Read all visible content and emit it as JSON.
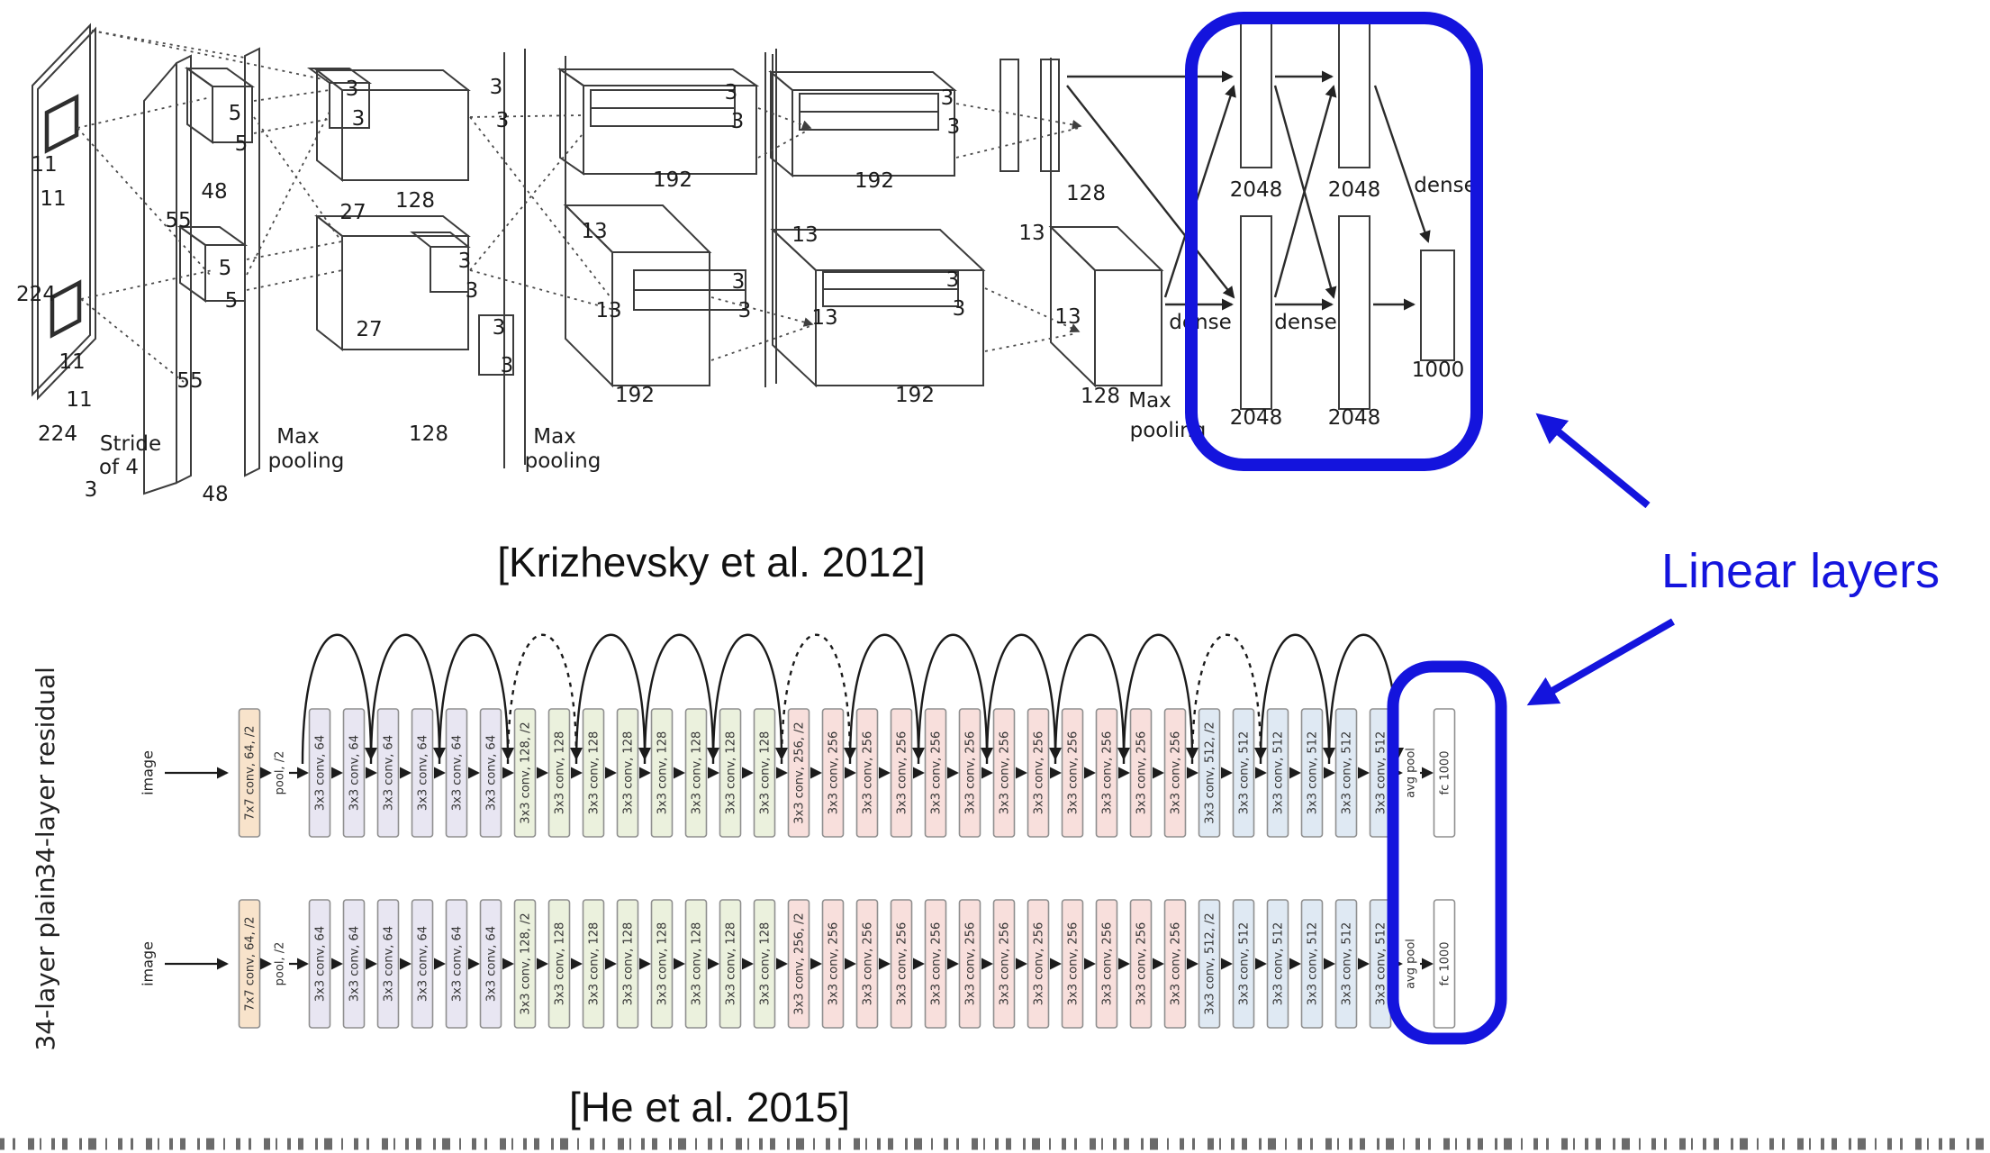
{
  "slide": {
    "background": "#ffffff",
    "accent_blue": "#1414dd",
    "annotation": {
      "label": "Linear layers"
    },
    "alexnet": {
      "caption": "[Krizhevsky et al. 2012]",
      "values": {
        "d224": "224",
        "d11": "11",
        "d5": "5",
        "d55": "55",
        "d48": "48",
        "d27": "27",
        "d3": "3",
        "d13": "13",
        "d128": "128",
        "d192": "192",
        "d1000": "1000",
        "d2048": "2048",
        "dense": "dense",
        "max": "Max",
        "pooling": "pooling",
        "stride1": "Stride",
        "stride2": "of 4"
      }
    },
    "resnet": {
      "caption": "[He et al. 2015]",
      "rows": [
        {
          "label": "34-layer residual",
          "input": "image",
          "arcs": true
        },
        {
          "label": "34-layer plain",
          "input": "image",
          "arcs": false
        }
      ],
      "dashed_arcs": [
        4,
        8,
        14
      ],
      "colors": {
        "stem": "#f8e3cb",
        "g64": "#e8e6f2",
        "g128": "#ebf1dd",
        "g256": "#f8dfdc",
        "g512": "#dfe9f3",
        "fc": "#ffffff"
      },
      "sequence": [
        {
          "label": "7x7 conv, 64, /2",
          "kind": "box",
          "group": "stem"
        },
        {
          "label": "pool, /2",
          "kind": "text"
        },
        {
          "label": "3x3 conv, 64",
          "kind": "box",
          "group": "g64"
        },
        {
          "label": "3x3 conv, 64",
          "kind": "box",
          "group": "g64"
        },
        {
          "label": "3x3 conv, 64",
          "kind": "box",
          "group": "g64"
        },
        {
          "label": "3x3 conv, 64",
          "kind": "box",
          "group": "g64"
        },
        {
          "label": "3x3 conv, 64",
          "kind": "box",
          "group": "g64"
        },
        {
          "label": "3x3 conv, 64",
          "kind": "box",
          "group": "g64"
        },
        {
          "label": "3x3 conv, 128, /2",
          "kind": "box",
          "group": "g128"
        },
        {
          "label": "3x3 conv, 128",
          "kind": "box",
          "group": "g128"
        },
        {
          "label": "3x3 conv, 128",
          "kind": "box",
          "group": "g128"
        },
        {
          "label": "3x3 conv, 128",
          "kind": "box",
          "group": "g128"
        },
        {
          "label": "3x3 conv, 128",
          "kind": "box",
          "group": "g128"
        },
        {
          "label": "3x3 conv, 128",
          "kind": "box",
          "group": "g128"
        },
        {
          "label": "3x3 conv, 128",
          "kind": "box",
          "group": "g128"
        },
        {
          "label": "3x3 conv, 128",
          "kind": "box",
          "group": "g128"
        },
        {
          "label": "3x3 conv, 256, /2",
          "kind": "box",
          "group": "g256"
        },
        {
          "label": "3x3 conv, 256",
          "kind": "box",
          "group": "g256"
        },
        {
          "label": "3x3 conv, 256",
          "kind": "box",
          "group": "g256"
        },
        {
          "label": "3x3 conv, 256",
          "kind": "box",
          "group": "g256"
        },
        {
          "label": "3x3 conv, 256",
          "kind": "box",
          "group": "g256"
        },
        {
          "label": "3x3 conv, 256",
          "kind": "box",
          "group": "g256"
        },
        {
          "label": "3x3 conv, 256",
          "kind": "box",
          "group": "g256"
        },
        {
          "label": "3x3 conv, 256",
          "kind": "box",
          "group": "g256"
        },
        {
          "label": "3x3 conv, 256",
          "kind": "box",
          "group": "g256"
        },
        {
          "label": "3x3 conv, 256",
          "kind": "box",
          "group": "g256"
        },
        {
          "label": "3x3 conv, 256",
          "kind": "box",
          "group": "g256"
        },
        {
          "label": "3x3 conv, 256",
          "kind": "box",
          "group": "g256"
        },
        {
          "label": "3x3 conv, 512, /2",
          "kind": "box",
          "group": "g512"
        },
        {
          "label": "3x3 conv, 512",
          "kind": "box",
          "group": "g512"
        },
        {
          "label": "3x3 conv, 512",
          "kind": "box",
          "group": "g512"
        },
        {
          "label": "3x3 conv, 512",
          "kind": "box",
          "group": "g512"
        },
        {
          "label": "3x3 conv, 512",
          "kind": "box",
          "group": "g512"
        },
        {
          "label": "3x3 conv, 512",
          "kind": "box",
          "group": "g512"
        },
        {
          "label": "avg pool",
          "kind": "text"
        },
        {
          "label": "fc 1000",
          "kind": "box",
          "group": "fc"
        }
      ]
    }
  }
}
